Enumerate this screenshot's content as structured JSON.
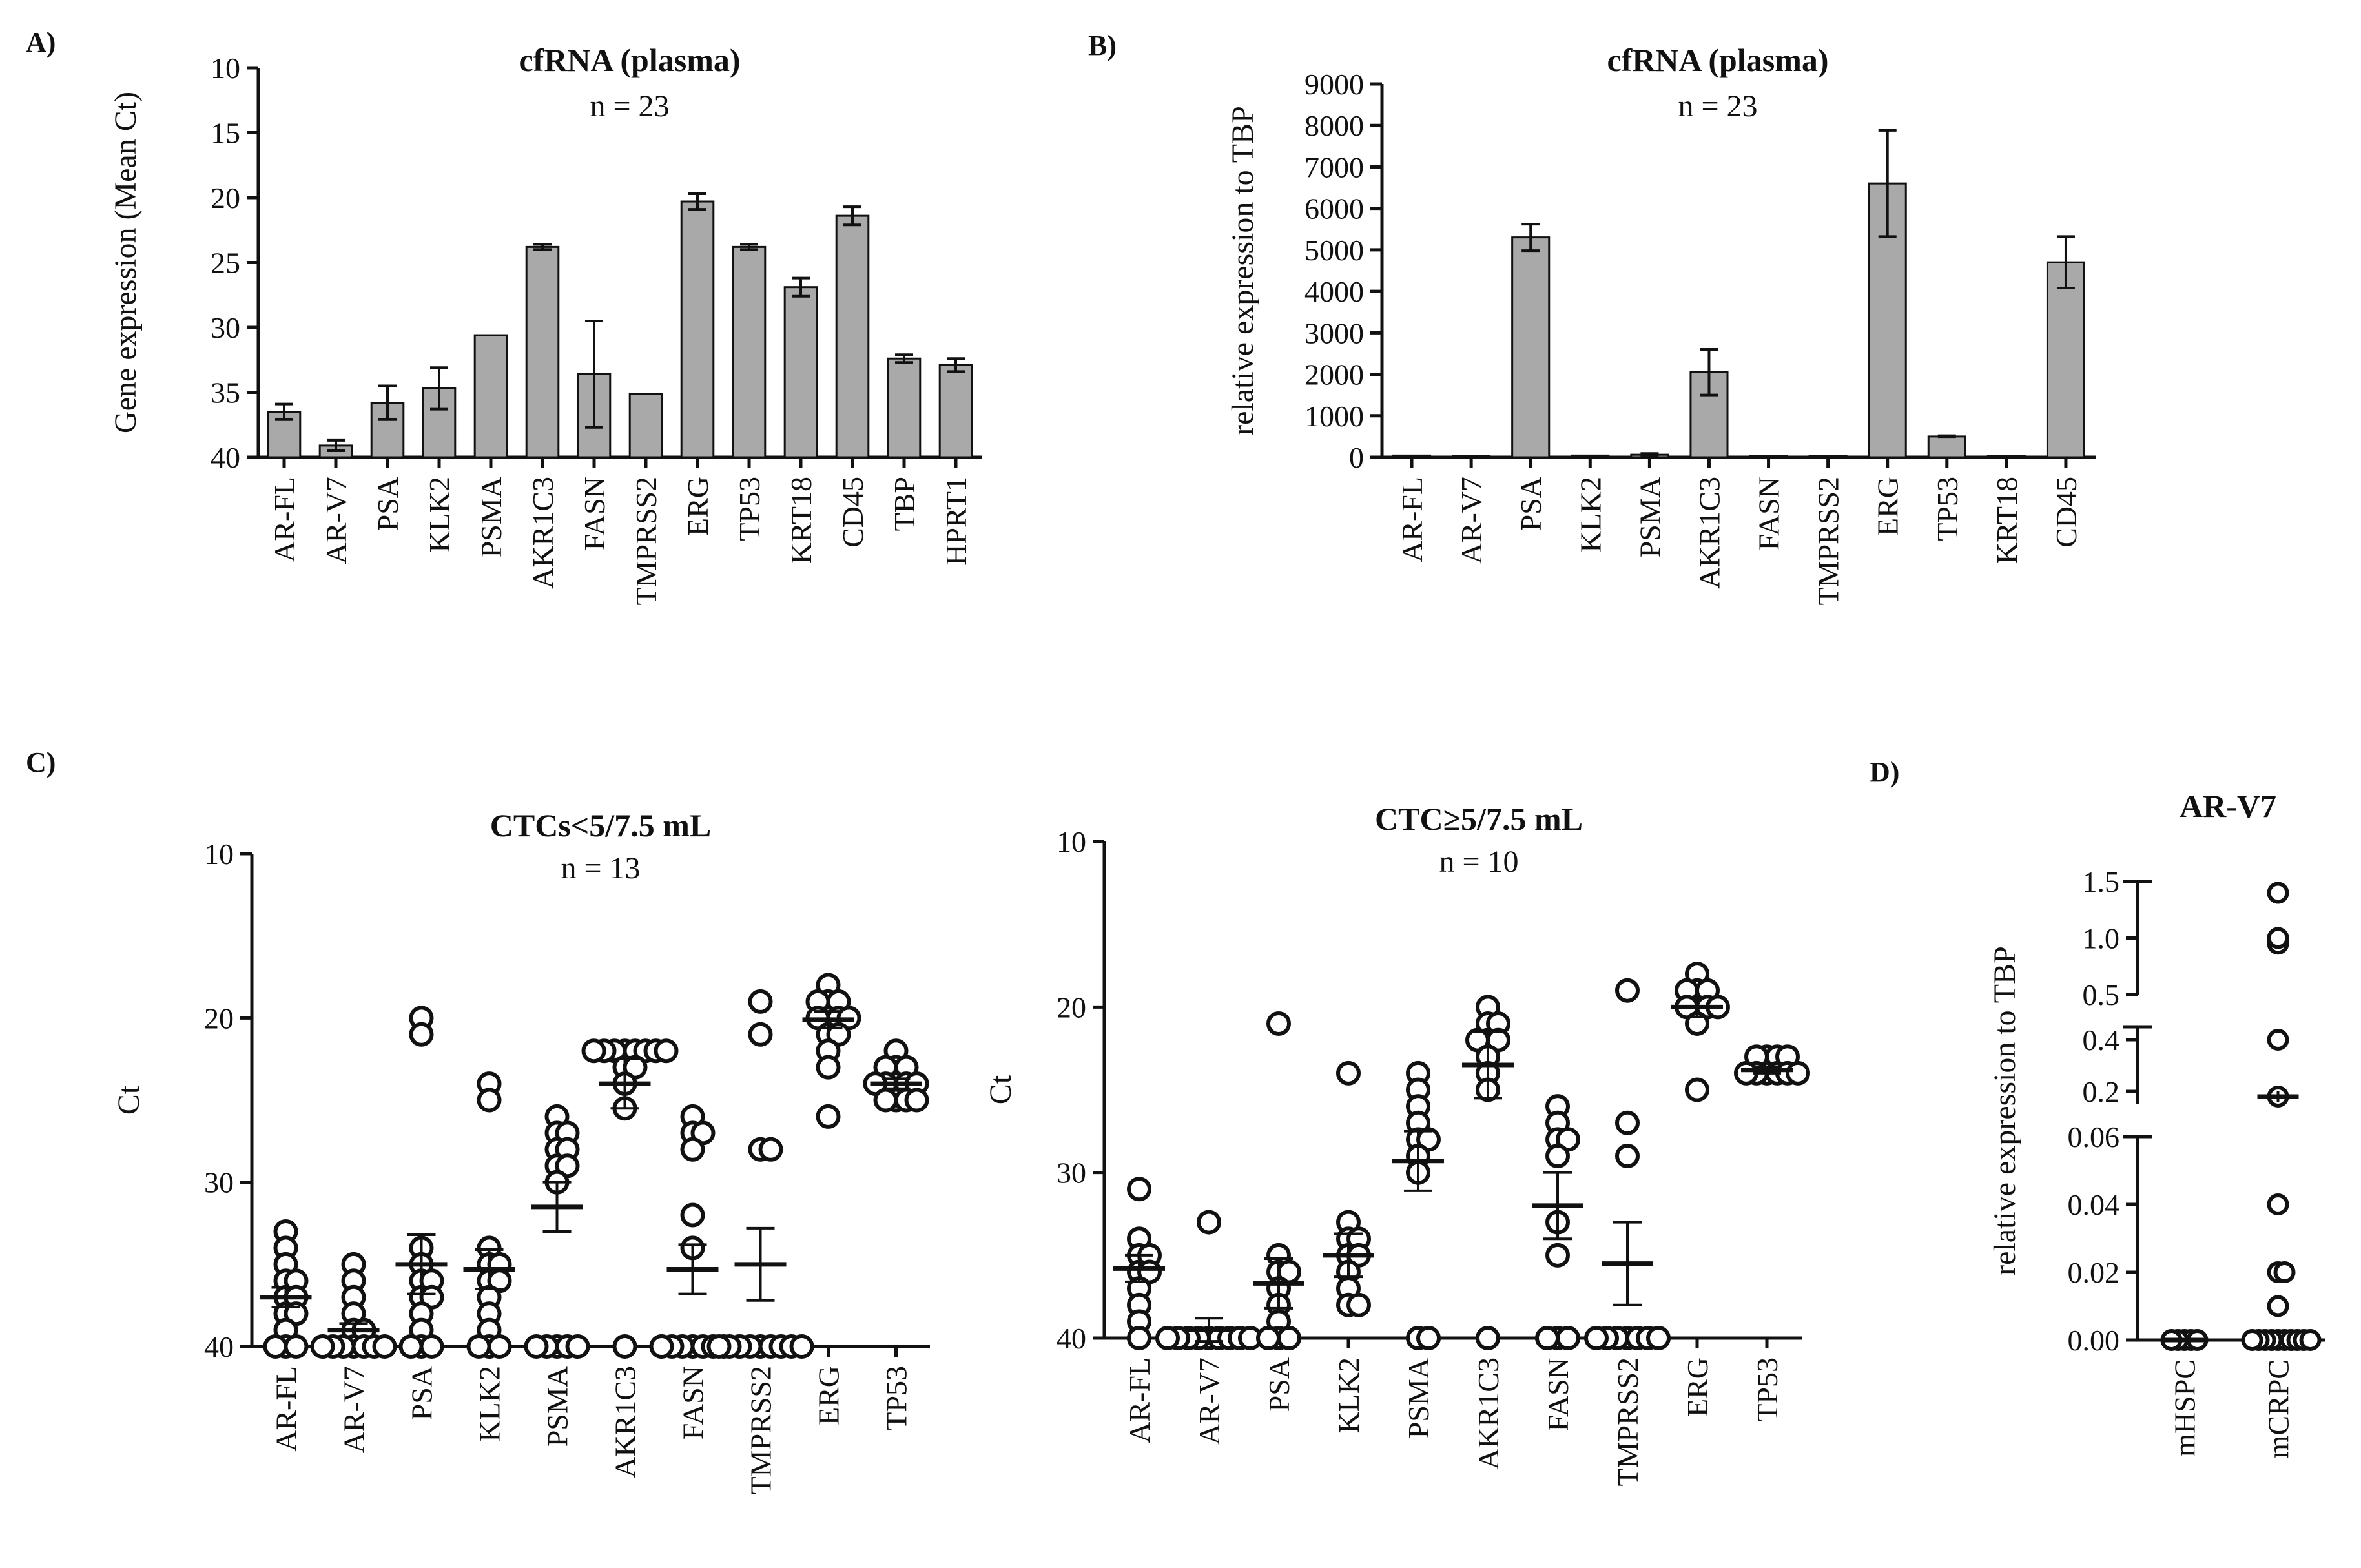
{
  "figure_labels": [
    "A)",
    "B)",
    "C)",
    "D)"
  ],
  "chart_data": [
    {
      "id": "A",
      "type": "bar",
      "title": "cfRNA (plasma)",
      "subtitle": "n = 23",
      "ylabel": "Gene expression (Mean Ct)",
      "y_inverted": true,
      "ylim": [
        10,
        40
      ],
      "yticks": [
        10,
        15,
        20,
        25,
        30,
        35,
        40
      ],
      "categories": [
        "AR-FL",
        "AR-V7",
        "PSA",
        "KLK2",
        "PSMA",
        "AKR1C3",
        "FASN",
        "TMPRSS2",
        "ERG",
        "TP53",
        "KRT18",
        "CD45",
        "TBP",
        "HPRT1"
      ],
      "values": [
        36.5,
        39.1,
        35.8,
        34.7,
        30.6,
        23.8,
        33.6,
        35.1,
        20.3,
        23.8,
        26.9,
        21.4,
        32.4,
        32.9
      ],
      "errors": [
        0.6,
        0.4,
        1.3,
        1.6,
        0,
        0.2,
        4.1,
        0,
        0.6,
        0.2,
        0.7,
        0.7,
        0.3,
        0.5
      ]
    },
    {
      "id": "B",
      "type": "bar",
      "title": "cfRNA (plasma)",
      "subtitle": "n = 23",
      "ylabel": "relative expression to TBP",
      "ylim": [
        0,
        9000
      ],
      "yticks": [
        0,
        1000,
        2000,
        3000,
        4000,
        5000,
        6000,
        7000,
        8000,
        9000
      ],
      "categories": [
        "AR-FL",
        "AR-V7",
        "PSA",
        "KLK2",
        "PSMA",
        "AKR1C3",
        "FASN",
        "TMPRSS2",
        "ERG",
        "TP53",
        "KRT18",
        "CD45"
      ],
      "values": [
        10,
        5,
        5300,
        10,
        60,
        2050,
        5,
        5,
        6600,
        500,
        5,
        4700
      ],
      "errors": [
        0,
        0,
        320,
        0,
        30,
        550,
        0,
        0,
        1280,
        20,
        0,
        620
      ]
    },
    {
      "id": "C1",
      "type": "scatter",
      "title": "CTCs<5/7.5 mL",
      "subtitle": "n = 13",
      "ylabel": "Ct",
      "y_inverted": true,
      "ylim": [
        10,
        40
      ],
      "yticks": [
        10,
        20,
        30,
        40
      ],
      "categories": [
        "AR-FL",
        "AR-V7",
        "PSA",
        "KLK2",
        "PSMA",
        "AKR1C3",
        "FASN",
        "TMPRSS2",
        "ERG",
        "TP53"
      ],
      "points": [
        [
          33,
          34,
          35,
          36,
          36,
          37,
          37,
          38,
          38,
          39,
          40,
          40,
          40
        ],
        [
          35,
          36,
          37,
          38,
          39,
          39,
          40,
          40,
          40,
          40,
          40,
          40,
          40
        ],
        [
          20,
          21,
          34,
          35,
          36,
          36,
          37,
          37,
          38,
          39,
          40,
          40,
          40
        ],
        [
          24,
          25,
          34,
          35,
          35,
          36,
          36,
          37,
          38,
          39,
          40,
          40,
          40
        ],
        [
          26,
          27,
          27,
          28,
          28,
          29,
          29,
          30,
          40,
          40,
          40,
          40,
          40
        ],
        [
          22,
          22,
          22,
          22,
          22,
          22,
          22,
          22,
          23,
          23,
          24,
          25.5,
          40
        ],
        [
          26,
          27,
          27,
          28,
          32,
          34,
          40,
          40,
          40,
          40,
          40,
          40,
          40
        ],
        [
          19,
          21,
          28,
          28,
          40,
          40,
          40,
          40,
          40,
          40,
          40,
          40,
          40
        ],
        [
          18,
          19,
          19,
          19,
          20,
          20,
          20,
          20,
          21,
          21,
          22,
          23,
          26
        ],
        [
          22,
          23,
          23,
          23,
          24,
          24,
          24,
          24,
          24,
          25,
          25,
          25,
          25
        ]
      ],
      "means": [
        37,
        39,
        35,
        35.3,
        31.5,
        24,
        35.3,
        35,
        20.1,
        24
      ],
      "sems": [
        0.6,
        0.4,
        1.8,
        1.2,
        1.5,
        1.5,
        1.5,
        2.2,
        0.5,
        0.3
      ]
    },
    {
      "id": "C2",
      "type": "scatter",
      "title": "CTC≥5/7.5 mL",
      "subtitle": "n = 10",
      "ylabel": "Ct",
      "y_inverted": true,
      "ylim": [
        10,
        40
      ],
      "yticks": [
        10,
        20,
        30,
        40
      ],
      "categories": [
        "AR-FL",
        "AR-V7",
        "PSA",
        "KLK2",
        "PSMA",
        "AKR1C3",
        "FASN",
        "TMPRSS2",
        "ERG",
        "TP53"
      ],
      "points": [
        [
          31,
          34,
          35,
          35,
          36,
          36,
          37,
          38,
          39,
          40
        ],
        [
          33,
          40,
          40,
          40,
          40,
          40,
          40,
          40,
          40,
          40
        ],
        [
          21,
          35,
          36,
          36,
          37,
          38,
          39,
          40,
          40,
          40
        ],
        [
          24,
          33,
          34,
          34,
          35,
          35,
          36,
          37,
          38,
          38
        ],
        [
          24,
          25,
          26,
          27,
          28,
          28,
          29,
          30,
          40,
          40
        ],
        [
          20,
          21,
          21,
          22,
          22,
          22,
          23,
          24,
          25,
          40
        ],
        [
          26,
          27,
          28,
          28,
          29,
          33,
          35,
          40,
          40,
          40
        ],
        [
          19,
          27,
          29,
          40,
          40,
          40,
          40,
          40,
          40,
          40
        ],
        [
          18,
          19,
          19,
          19,
          20,
          20,
          20,
          20,
          21,
          25
        ],
        [
          23,
          23,
          23,
          23,
          24,
          24,
          24,
          24,
          24,
          24
        ]
      ],
      "means": [
        35.8,
        39.5,
        36.7,
        35,
        29.3,
        23.5,
        32,
        35.5,
        20,
        23.8
      ],
      "sems": [
        0.8,
        0.7,
        1.5,
        1.3,
        1.8,
        2.0,
        2.0,
        2.5,
        0.6,
        0.2
      ]
    },
    {
      "id": "D",
      "type": "scatter",
      "title": "AR-V7",
      "ylabel": "relative expression to  TBP",
      "broken_axis": true,
      "y_segments": [
        {
          "range": [
            0,
            0.06
          ],
          "ticks": [
            0.0,
            0.02,
            0.04,
            0.06
          ],
          "labels": [
            "0.00",
            "0.02",
            "0.04",
            "0.06"
          ]
        },
        {
          "range": [
            0.15,
            0.45
          ],
          "ticks": [
            0.2,
            0.4
          ],
          "labels": [
            "0.2",
            "0.4"
          ]
        },
        {
          "range": [
            0.5,
            1.5
          ],
          "ticks": [
            0.5,
            1.0,
            1.5
          ],
          "labels": [
            "0.5",
            "1.0",
            "1.5"
          ]
        }
      ],
      "categories": [
        "mHSPC",
        "mCRPC"
      ],
      "points": [
        [
          0,
          0,
          0,
          0,
          0
        ],
        [
          0,
          0,
          0,
          0,
          0,
          0,
          0,
          0,
          0,
          0,
          0.01,
          0.02,
          0.02,
          0.04,
          0.18,
          0.4,
          0.95,
          1.0,
          1.4
        ]
      ],
      "means": [
        0,
        0.18
      ],
      "sems": [
        0,
        0.02
      ]
    }
  ]
}
